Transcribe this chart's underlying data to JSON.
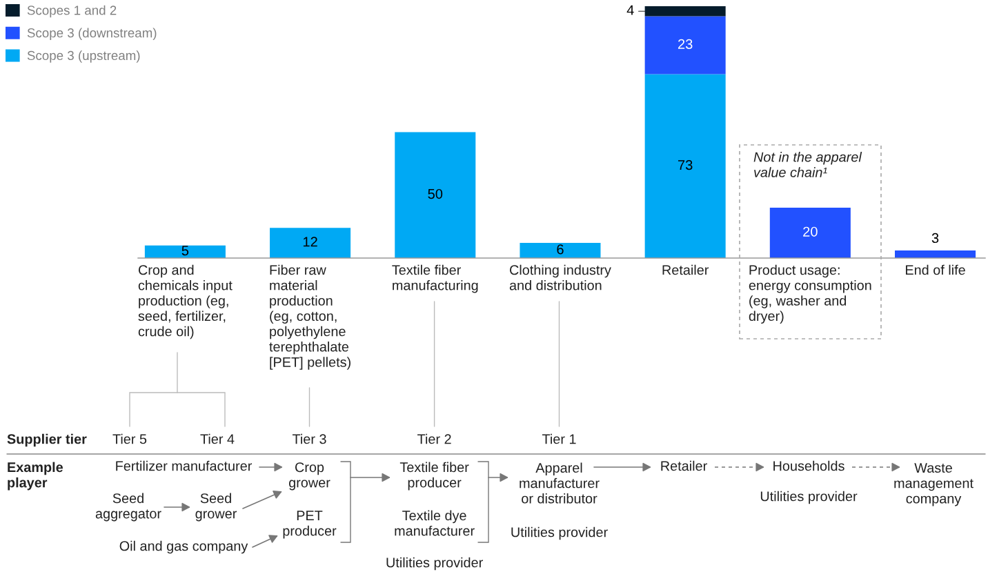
{
  "chart_data": {
    "type": "bar",
    "stacked": true,
    "data_labels": true,
    "legend": "top left",
    "categories": [
      "Crop and\nchemicals input\nproduction (eg,\nseed, fertilizer,\ncrude oil)",
      "Fiber raw\nmaterial\nproduction\n(eg, cotton,\npolyethylene\nterephthalate\n[PET] pellets)",
      "Textile fiber\nmanufacturing",
      "Clothing industry\nand distribution",
      "Retailer",
      "Product usage:\nenergy consumption\n(eg, washer and\ndryer)",
      "End of life"
    ],
    "series": [
      {
        "name": "Scope 3 (upstream)",
        "color": "#00a9f4",
        "values": [
          5,
          12,
          50,
          6,
          73,
          null,
          null
        ]
      },
      {
        "name": "Scope 3 (downstream)",
        "color": "#2251ff",
        "values": [
          null,
          null,
          null,
          null,
          23,
          20,
          3
        ]
      },
      {
        "name": "Scopes 1 and 2",
        "color": "#051c2c",
        "values": [
          null,
          null,
          null,
          null,
          4,
          null,
          null
        ]
      }
    ],
    "annotations": [
      "Not in the apparel\nvalue chain¹",
      "Supplier tier",
      "Tier 5",
      "Tier 4",
      "Tier 3",
      "Tier 2",
      "Tier 1",
      "Example\nplayer",
      "Fertilizer manufacturer",
      "Crop\ngrower",
      "Seed\naggregator",
      "Seed\ngrower",
      "PET\nproducer",
      "Oil and gas company",
      "Textile fiber\nproducer",
      "Textile dye\nmanufacturer",
      "Utilities provider",
      "Apparel\nmanufacturer\nor distributor",
      "Utilities provider",
      "Retailer",
      "Households",
      "Utilities provider",
      "Waste\nmanagement\ncompany"
    ]
  }
}
